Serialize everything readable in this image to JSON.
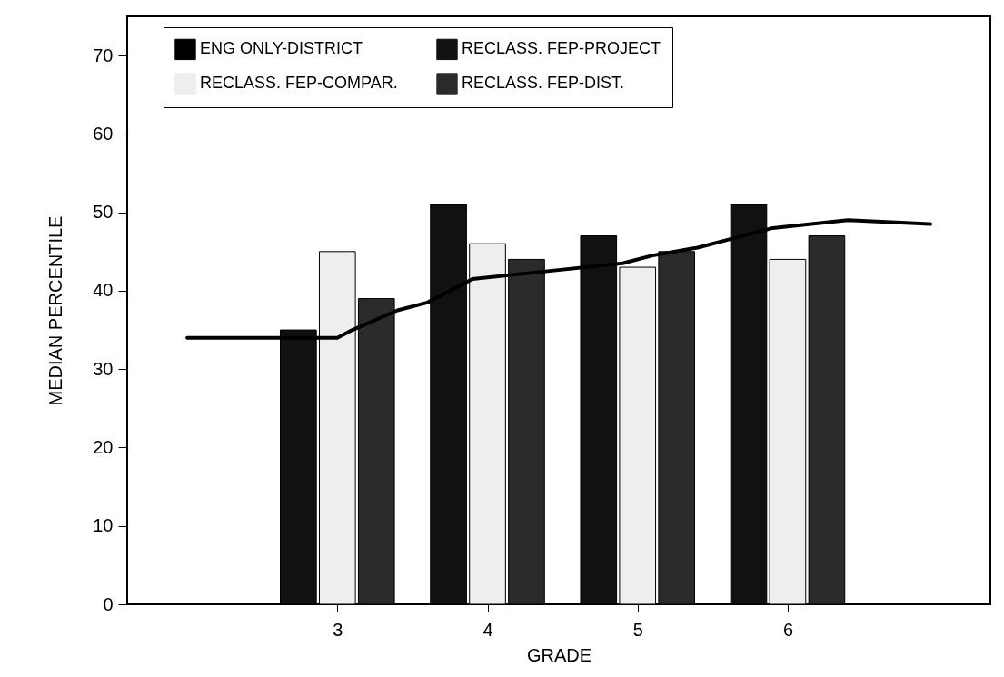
{
  "chart_data": {
    "type": "bar",
    "xlabel": "GRADE",
    "ylabel": "MEDIAN PERCENTILE",
    "x": [
      3,
      4,
      5,
      6
    ],
    "xlim": [
      1.6,
      7.35
    ],
    "xticks": [
      3,
      4,
      5,
      6
    ],
    "ylim": [
      0,
      75
    ],
    "yticks": [
      0,
      10,
      20,
      30,
      40,
      50,
      60,
      70
    ],
    "grid": false,
    "legend": "top",
    "marker": "none",
    "line_style": "solid",
    "series": [
      {
        "name": "ENG ONLY-DISTRICT",
        "type": "line",
        "color": "#000000",
        "x": [
          2.0,
          2.85,
          3.0,
          3.1,
          3.4,
          3.6,
          3.9,
          4.4,
          4.9,
          5.1,
          5.4,
          5.6,
          5.9,
          6.4,
          6.95
        ],
        "values": [
          34,
          34,
          34,
          35,
          37.5,
          38.5,
          41.5,
          42.5,
          43.5,
          44.5,
          45.5,
          46.5,
          48,
          49,
          48.5
        ]
      },
      {
        "name": "RECLASS. FEP-PROJECT",
        "color": "#111111",
        "values": [
          35,
          51,
          47,
          51
        ]
      },
      {
        "name": "RECLASS. FEP-COMPAR.",
        "color": "#eeeeee",
        "values": [
          45,
          46,
          43,
          44
        ]
      },
      {
        "name": "RECLASS. FEP-DIST.",
        "color": "#2b2b2b",
        "values": [
          39,
          44,
          45,
          47
        ]
      }
    ]
  }
}
